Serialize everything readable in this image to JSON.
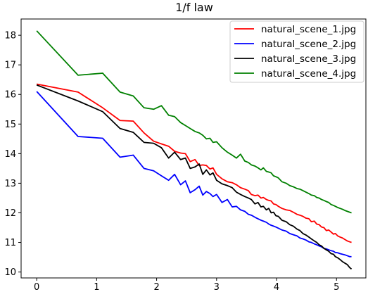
{
  "chart_data": {
    "type": "line",
    "title": "1/f law",
    "xlabel": "",
    "ylabel": "",
    "xlim": [
      -0.26,
      5.49
    ],
    "ylim": [
      9.8,
      18.55
    ],
    "xticks": [
      0,
      1,
      2,
      3,
      4,
      5
    ],
    "yticks": [
      10,
      11,
      12,
      13,
      14,
      15,
      16,
      17,
      18
    ],
    "grid": false,
    "legend_position": "top-right",
    "series": [
      {
        "name": "natural_scene_1.jpg",
        "color": "#ff0000",
        "x": [
          0,
          0.69,
          1.1,
          1.39,
          1.61,
          1.79,
          1.95,
          2.08,
          2.2,
          2.3,
          2.4,
          2.48,
          2.56,
          2.64,
          2.71,
          2.77,
          2.83,
          2.89,
          2.94,
          3.0,
          3.09,
          3.18,
          3.26,
          3.33,
          3.4,
          3.47,
          3.53,
          3.58,
          3.64,
          3.69,
          3.74,
          3.78,
          3.83,
          3.87,
          3.91,
          3.95,
          3.99,
          4.03,
          4.09,
          4.16,
          4.22,
          4.28,
          4.34,
          4.39,
          4.44,
          4.49,
          4.54,
          4.58,
          4.63,
          4.67,
          4.71,
          4.75,
          4.79,
          4.83,
          4.87,
          4.91,
          4.95,
          4.98,
          5.02,
          5.06,
          5.1,
          5.14,
          5.18,
          5.22,
          5.25
        ],
        "y": [
          16.35,
          16.08,
          15.55,
          15.12,
          15.1,
          14.7,
          14.42,
          14.33,
          14.25,
          14.08,
          14.02,
          14.0,
          13.73,
          13.8,
          13.6,
          13.62,
          13.6,
          13.48,
          13.52,
          13.3,
          13.15,
          13.05,
          13.02,
          12.95,
          12.85,
          12.8,
          12.75,
          12.62,
          12.58,
          12.6,
          12.5,
          12.52,
          12.45,
          12.42,
          12.4,
          12.3,
          12.28,
          12.22,
          12.15,
          12.1,
          12.08,
          12.02,
          11.95,
          11.92,
          11.88,
          11.82,
          11.8,
          11.7,
          11.72,
          11.62,
          11.6,
          11.52,
          11.5,
          11.4,
          11.42,
          11.35,
          11.28,
          11.3,
          11.22,
          11.18,
          11.15,
          11.1,
          11.05,
          11.02,
          11.0
        ]
      },
      {
        "name": "natural_scene_2.jpg",
        "color": "#0000ff",
        "x": [
          0,
          0.69,
          1.1,
          1.39,
          1.61,
          1.79,
          1.95,
          2.08,
          2.2,
          2.3,
          2.4,
          2.48,
          2.56,
          2.64,
          2.71,
          2.77,
          2.83,
          2.89,
          2.94,
          3.0,
          3.09,
          3.18,
          3.26,
          3.33,
          3.4,
          3.47,
          3.53,
          3.58,
          3.64,
          3.69,
          3.74,
          3.78,
          3.83,
          3.87,
          3.91,
          3.95,
          3.99,
          4.03,
          4.09,
          4.16,
          4.22,
          4.28,
          4.34,
          4.39,
          4.44,
          4.49,
          4.54,
          4.58,
          4.63,
          4.67,
          4.71,
          4.75,
          4.79,
          4.83,
          4.87,
          4.91,
          4.95,
          4.98,
          5.02,
          5.06,
          5.1,
          5.14,
          5.18,
          5.22,
          5.25
        ],
        "y": [
          16.1,
          14.58,
          14.52,
          13.88,
          13.95,
          13.5,
          13.42,
          13.25,
          13.1,
          13.3,
          12.95,
          13.08,
          12.68,
          12.78,
          12.9,
          12.6,
          12.72,
          12.65,
          12.55,
          12.62,
          12.35,
          12.45,
          12.2,
          12.22,
          12.1,
          12.05,
          11.95,
          11.92,
          11.85,
          11.8,
          11.75,
          11.72,
          11.68,
          11.62,
          11.58,
          11.55,
          11.52,
          11.48,
          11.42,
          11.38,
          11.3,
          11.26,
          11.22,
          11.15,
          11.12,
          11.08,
          11.02,
          11.0,
          10.95,
          10.92,
          10.88,
          10.85,
          10.8,
          10.78,
          10.75,
          10.72,
          10.7,
          10.66,
          10.65,
          10.62,
          10.6,
          10.58,
          10.55,
          10.52,
          10.52
        ]
      },
      {
        "name": "natural_scene_3.jpg",
        "color": "#000000",
        "x": [
          0,
          0.69,
          1.1,
          1.39,
          1.61,
          1.79,
          1.95,
          2.08,
          2.2,
          2.3,
          2.4,
          2.48,
          2.56,
          2.64,
          2.71,
          2.77,
          2.83,
          2.89,
          2.94,
          3.0,
          3.09,
          3.18,
          3.26,
          3.33,
          3.4,
          3.47,
          3.53,
          3.58,
          3.64,
          3.69,
          3.74,
          3.78,
          3.83,
          3.87,
          3.91,
          3.95,
          3.99,
          4.03,
          4.09,
          4.16,
          4.22,
          4.28,
          4.34,
          4.39,
          4.44,
          4.49,
          4.54,
          4.58,
          4.63,
          4.67,
          4.71,
          4.75,
          4.79,
          4.83,
          4.87,
          4.91,
          4.95,
          4.98,
          5.02,
          5.06,
          5.1,
          5.14,
          5.18,
          5.22,
          5.25
        ],
        "y": [
          16.32,
          15.78,
          15.42,
          14.85,
          14.72,
          14.38,
          14.35,
          14.2,
          13.85,
          14.05,
          13.8,
          13.85,
          13.5,
          13.55,
          13.65,
          13.3,
          13.45,
          13.28,
          13.35,
          13.1,
          12.98,
          12.92,
          12.85,
          12.7,
          12.62,
          12.55,
          12.5,
          12.45,
          12.3,
          12.35,
          12.2,
          12.22,
          12.1,
          12.15,
          12.0,
          12.02,
          11.9,
          11.88,
          11.75,
          11.7,
          11.6,
          11.55,
          11.45,
          11.4,
          11.3,
          11.25,
          11.18,
          11.12,
          11.05,
          11.0,
          10.92,
          10.88,
          10.8,
          10.75,
          10.7,
          10.62,
          10.6,
          10.52,
          10.48,
          10.42,
          10.35,
          10.3,
          10.25,
          10.15,
          10.1
        ]
      },
      {
        "name": "natural_scene_4.jpg",
        "color": "#008000",
        "x": [
          0,
          0.69,
          1.1,
          1.39,
          1.61,
          1.79,
          1.95,
          2.08,
          2.2,
          2.3,
          2.4,
          2.48,
          2.56,
          2.64,
          2.71,
          2.77,
          2.83,
          2.89,
          2.94,
          3.0,
          3.09,
          3.18,
          3.26,
          3.33,
          3.4,
          3.47,
          3.53,
          3.58,
          3.64,
          3.69,
          3.74,
          3.78,
          3.83,
          3.87,
          3.91,
          3.95,
          3.99,
          4.03,
          4.09,
          4.16,
          4.22,
          4.28,
          4.34,
          4.39,
          4.44,
          4.49,
          4.54,
          4.58,
          4.63,
          4.67,
          4.71,
          4.75,
          4.79,
          4.83,
          4.87,
          4.91,
          4.95,
          4.98,
          5.02,
          5.06,
          5.1,
          5.14,
          5.18,
          5.22,
          5.25
        ],
        "y": [
          18.15,
          16.65,
          16.72,
          16.08,
          15.95,
          15.55,
          15.5,
          15.62,
          15.3,
          15.25,
          15.05,
          14.95,
          14.85,
          14.75,
          14.7,
          14.62,
          14.5,
          14.52,
          14.38,
          14.4,
          14.2,
          14.05,
          13.95,
          13.85,
          13.98,
          13.75,
          13.7,
          13.62,
          13.58,
          13.52,
          13.45,
          13.52,
          13.4,
          13.38,
          13.35,
          13.25,
          13.22,
          13.18,
          13.05,
          13.0,
          12.92,
          12.88,
          12.82,
          12.8,
          12.75,
          12.7,
          12.65,
          12.6,
          12.58,
          12.52,
          12.5,
          12.45,
          12.42,
          12.38,
          12.35,
          12.28,
          12.25,
          12.22,
          12.18,
          12.15,
          12.12,
          12.08,
          12.05,
          12.02,
          12.0
        ]
      }
    ]
  }
}
